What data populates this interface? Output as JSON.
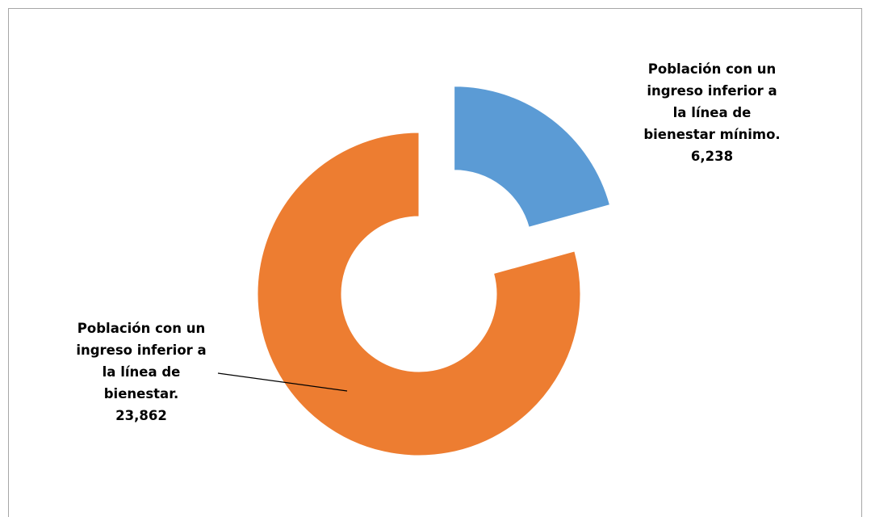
{
  "chart_data": {
    "type": "pie",
    "variant": "doughnut",
    "exploded": true,
    "legend": "none",
    "slices": [
      {
        "name_lines": [
          "Población con un",
          "ingreso inferior a",
          "la línea de",
          "bienestar mínimo."
        ],
        "value": 6238,
        "value_label": "6,238",
        "color": "#5b9bd5"
      },
      {
        "name_lines": [
          "Población con un",
          "ingreso inferior a",
          "la línea de",
          "bienestar."
        ],
        "value": 23862,
        "value_label": "23,862",
        "color": "#ed7d31"
      }
    ]
  }
}
